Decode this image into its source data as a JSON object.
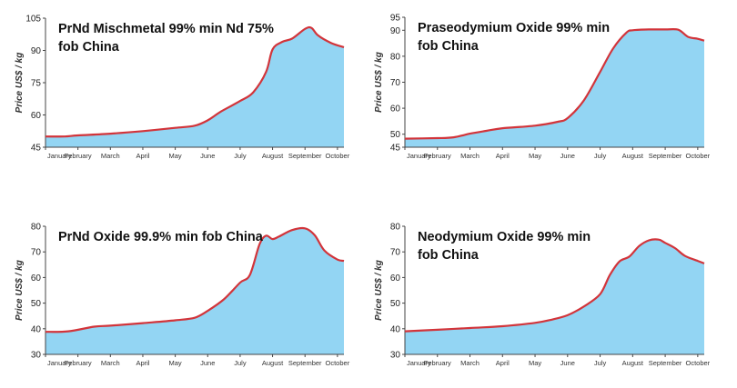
{
  "colors": {
    "fill": "#93d5f3",
    "line": "#d2343a",
    "axis": "#444444"
  },
  "chart_data": [
    {
      "type": "area",
      "title_lines": [
        "PrNd Mischmetal 99% min Nd 75%",
        "fob China"
      ],
      "ylabel": "Price US$ / kg",
      "ylim": [
        45,
        105
      ],
      "yticks": [
        "45",
        "60",
        "75",
        "90",
        "105"
      ],
      "xticks": [
        "January",
        "February",
        "March",
        "April",
        "May",
        "June",
        "July",
        "August",
        "September",
        "October"
      ],
      "xrange": [
        1,
        10.2
      ],
      "x": [
        1,
        1.6,
        2,
        3,
        4,
        5,
        5.6,
        6,
        6.4,
        7,
        7.4,
        7.8,
        8,
        8.3,
        8.6,
        9,
        9.2,
        9.4,
        9.8,
        10.2
      ],
      "y": [
        50,
        50,
        50.5,
        51.3,
        52.5,
        54,
        55,
        57.5,
        61.5,
        66.5,
        70.5,
        80,
        90.5,
        94,
        95.5,
        100,
        100.5,
        97,
        93.5,
        91.5
      ]
    },
    {
      "type": "area",
      "title_lines": [
        "Praseodymium Oxide 99% min",
        "fob China"
      ],
      "ylabel": "Price US$ / kg",
      "ylim": [
        45,
        95
      ],
      "yticks": [
        "45",
        "50",
        "60",
        "70",
        "80",
        "90",
        "95"
      ],
      "xticks": [
        "January",
        "February",
        "March",
        "April",
        "May",
        "June",
        "July",
        "August",
        "September",
        "October"
      ],
      "xrange": [
        1,
        10.2
      ],
      "x": [
        1,
        2,
        2.5,
        3,
        3.5,
        4,
        5,
        5.7,
        6,
        6.5,
        7,
        7.4,
        7.8,
        8,
        8.5,
        9,
        9.4,
        9.7,
        10,
        10.2
      ],
      "y": [
        48.3,
        48.5,
        48.8,
        50.2,
        51.3,
        52.3,
        53.3,
        54.8,
        56.2,
        63,
        74,
        83,
        89,
        90,
        90.3,
        90.3,
        90.2,
        87.5,
        86.7,
        86
      ]
    },
    {
      "type": "area",
      "title_lines": [
        "PrNd Oxide 99.9% min fob China"
      ],
      "ylabel": "Price US$ / kg",
      "ylim": [
        30,
        80
      ],
      "yticks": [
        "30",
        "40",
        "50",
        "60",
        "70",
        "80"
      ],
      "xticks": [
        "January",
        "February",
        "March",
        "April",
        "May",
        "June",
        "July",
        "August",
        "September",
        "October"
      ],
      "xrange": [
        1,
        10.2
      ],
      "x": [
        1,
        1.7,
        2.5,
        3,
        4,
        5,
        5.6,
        6,
        6.5,
        7,
        7.3,
        7.6,
        7.8,
        8,
        8.2,
        8.6,
        9,
        9.3,
        9.6,
        10,
        10.2
      ],
      "y": [
        38.8,
        39,
        40.8,
        41.2,
        42.2,
        43.3,
        44.3,
        47,
        51.5,
        58,
        61,
        73,
        76.3,
        75,
        76,
        78.5,
        79.2,
        76.5,
        70.5,
        67,
        66.5
      ]
    },
    {
      "type": "area",
      "title_lines": [
        "Neodymium Oxide 99% min",
        "fob China"
      ],
      "ylabel": "Price US$ / kg",
      "ylim": [
        30,
        80
      ],
      "yticks": [
        "30",
        "40",
        "50",
        "60",
        "70",
        "80"
      ],
      "xticks": [
        "January",
        "February",
        "March",
        "April",
        "May",
        "June",
        "July",
        "August",
        "September",
        "October"
      ],
      "xrange": [
        1,
        10.2
      ],
      "x": [
        1,
        2,
        3,
        4,
        5,
        5.5,
        6,
        6.5,
        7,
        7.3,
        7.6,
        7.9,
        8.2,
        8.5,
        8.8,
        9,
        9.3,
        9.6,
        10,
        10.2
      ],
      "y": [
        39,
        39.6,
        40.3,
        41,
        42.3,
        43.5,
        45.3,
        48.7,
        53.5,
        61,
        66.3,
        68.2,
        72.3,
        74.5,
        74.8,
        73.5,
        71.5,
        68.5,
        66.5,
        65.5
      ]
    }
  ]
}
